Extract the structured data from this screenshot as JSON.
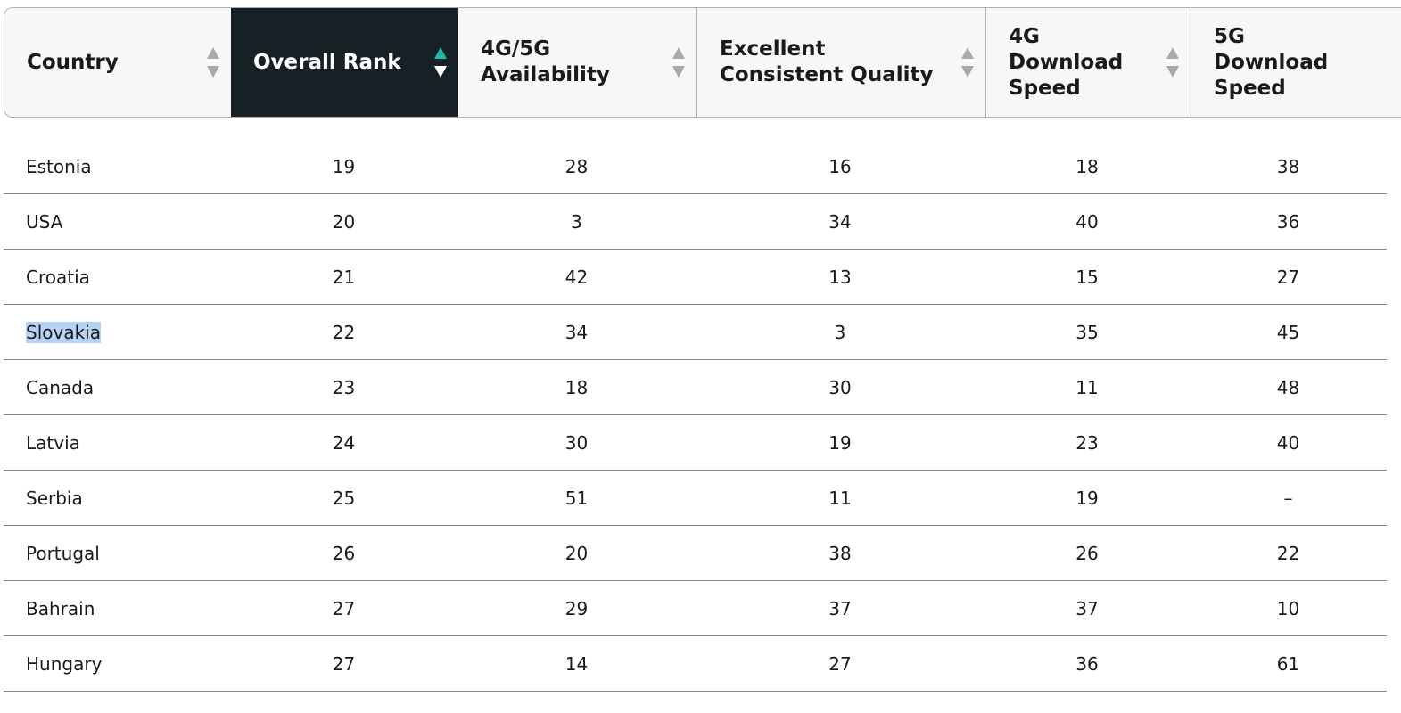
{
  "table": {
    "columns": [
      {
        "label": "Country"
      },
      {
        "label": "Overall Rank",
        "active": true
      },
      {
        "label": "4G/5G Availability"
      },
      {
        "label": "Excellent Consistent Quality"
      },
      {
        "label": "4G Download Speed"
      },
      {
        "label": "5G Download Speed"
      }
    ],
    "rows": [
      {
        "country": "Estonia",
        "overall": "19",
        "availability": "28",
        "quality": "16",
        "dl4g": "18",
        "dl5g": "38"
      },
      {
        "country": "USA",
        "overall": "20",
        "availability": "3",
        "quality": "34",
        "dl4g": "40",
        "dl5g": "36"
      },
      {
        "country": "Croatia",
        "overall": "21",
        "availability": "42",
        "quality": "13",
        "dl4g": "15",
        "dl5g": "27"
      },
      {
        "country": "Slovakia",
        "overall": "22",
        "availability": "34",
        "quality": "3",
        "dl4g": "35",
        "dl5g": "45",
        "selected": true
      },
      {
        "country": "Canada",
        "overall": "23",
        "availability": "18",
        "quality": "30",
        "dl4g": "11",
        "dl5g": "48"
      },
      {
        "country": "Latvia",
        "overall": "24",
        "availability": "30",
        "quality": "19",
        "dl4g": "23",
        "dl5g": "40"
      },
      {
        "country": "Serbia",
        "overall": "25",
        "availability": "51",
        "quality": "11",
        "dl4g": "19",
        "dl5g": "–"
      },
      {
        "country": "Portugal",
        "overall": "26",
        "availability": "20",
        "quality": "38",
        "dl4g": "26",
        "dl5g": "22"
      },
      {
        "country": "Bahrain",
        "overall": "27",
        "availability": "29",
        "quality": "37",
        "dl4g": "37",
        "dl5g": "10"
      },
      {
        "country": "Hungary",
        "overall": "27",
        "availability": "14",
        "quality": "27",
        "dl4g": "36",
        "dl5g": "61"
      }
    ]
  },
  "colors": {
    "active_header_bg": "#172125",
    "sort_up_active": "#20b8a8",
    "selection_highlight": "#b6d3f5"
  },
  "icons": {
    "sort": "sort-arrows-icon"
  }
}
